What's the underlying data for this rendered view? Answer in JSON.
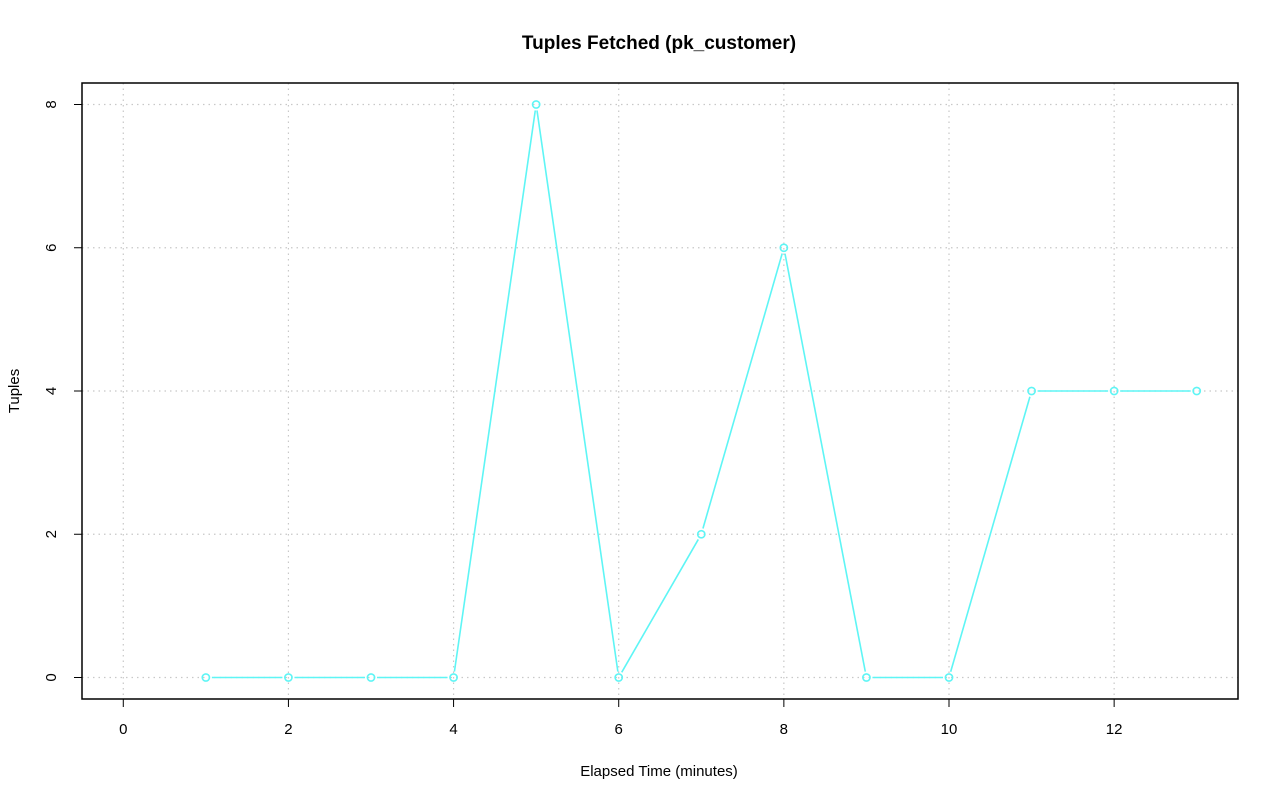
{
  "chart_data": {
    "type": "line",
    "title": "Tuples Fetched (pk_customer)",
    "xlabel": "Elapsed Time (minutes)",
    "ylabel": "Tuples",
    "xlim": [
      -0.5,
      13.5
    ],
    "ylim": [
      -0.3,
      8.3
    ],
    "x_ticks": [
      0,
      2,
      4,
      6,
      8,
      10,
      12
    ],
    "y_ticks": [
      0,
      2,
      4,
      6,
      8
    ],
    "grid": true,
    "legend": "none",
    "series": [
      {
        "color": "#5ef5f5",
        "marker": "open-circle",
        "x": [
          1,
          2,
          3,
          4,
          5,
          6,
          7,
          8,
          9,
          10,
          11,
          12,
          13
        ],
        "y": [
          0,
          0,
          0,
          0,
          8,
          0,
          2,
          6,
          0,
          0,
          4,
          4,
          4
        ]
      }
    ]
  }
}
